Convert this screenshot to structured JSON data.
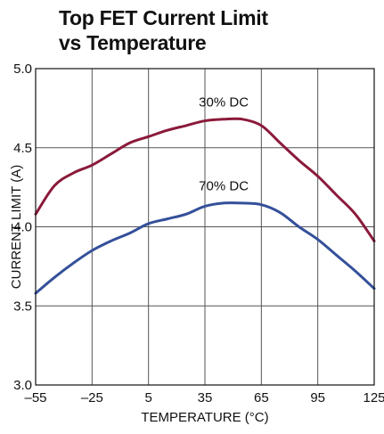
{
  "chart_data": {
    "type": "line",
    "title_lines": [
      "Top FET Current Limit",
      "vs Temperature"
    ],
    "xlabel": "TEMPERATURE (°C)",
    "ylabel": "CURRENT LIMIT (A)",
    "xlim": [
      -55,
      125
    ],
    "ylim": [
      3.0,
      5.0
    ],
    "x_ticks": [
      -55,
      -25,
      5,
      35,
      65,
      95,
      125
    ],
    "x_tick_labels": [
      "–55",
      "–25",
      "5",
      "35",
      "65",
      "95",
      "125"
    ],
    "y_ticks": [
      3.0,
      3.5,
      4.0,
      4.5,
      5.0
    ],
    "y_tick_labels": [
      "3.0",
      "3.5",
      "4.0",
      "4.5",
      "5.0"
    ],
    "grid": true,
    "series": [
      {
        "name": "30% DC",
        "color": "#8b1a3a",
        "x": [
          -55,
          -45,
          -35,
          -25,
          -15,
          -5,
          5,
          15,
          25,
          35,
          45,
          55,
          65,
          75,
          85,
          95,
          105,
          115,
          125
        ],
        "y": [
          4.08,
          4.26,
          4.34,
          4.39,
          4.46,
          4.53,
          4.57,
          4.61,
          4.64,
          4.67,
          4.68,
          4.68,
          4.64,
          4.53,
          4.42,
          4.32,
          4.2,
          4.08,
          3.91
        ]
      },
      {
        "name": "70% DC",
        "color": "#34509a",
        "x": [
          -55,
          -45,
          -35,
          -25,
          -15,
          -5,
          5,
          15,
          25,
          35,
          45,
          55,
          65,
          75,
          85,
          95,
          105,
          115,
          125
        ],
        "y": [
          3.58,
          3.68,
          3.77,
          3.85,
          3.91,
          3.96,
          4.02,
          4.05,
          4.08,
          4.13,
          4.15,
          4.15,
          4.14,
          4.09,
          4.0,
          3.92,
          3.82,
          3.72,
          3.61
        ]
      }
    ],
    "annotations": [
      {
        "text": "30% DC",
        "x": 45,
        "y": 4.76
      },
      {
        "text": "70% DC",
        "x": 45,
        "y": 4.23
      }
    ]
  }
}
